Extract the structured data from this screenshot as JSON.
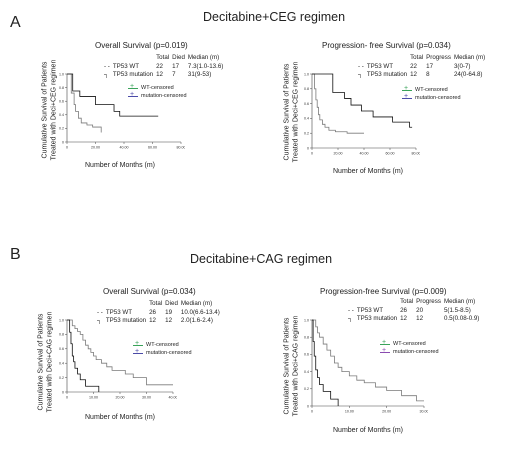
{
  "panels": [
    {
      "letter": "A",
      "regimen": "Decitabine+CEG regimen",
      "ylabel_line1": "Cumulative Survival of Patients",
      "ylabel_line2": "Treated with Deci+CEG regimen",
      "xlabel": "Number of Months (m)",
      "legend": [
        "WT-censored",
        "mutation-censored"
      ]
    },
    {
      "letter": "B",
      "regimen": "Decitabine+CAG regimen",
      "ylabel_line1": "Cumulative Survival of Patients",
      "ylabel_line2": "Treated with Deci+CAG regimen",
      "xlabel": "Number of Months (m)",
      "legend": [
        "WT-censored",
        "mutation-censored"
      ]
    }
  ],
  "colors": {
    "wt": "#7a7a7a",
    "mut": "#111111",
    "wt_censor": "#3aa35a",
    "mut_censor": "#4b4ba8"
  },
  "chart_data": [
    {
      "type": "line",
      "title": "Overall Survival (p=0.019)",
      "xlabel": "Number of Months (m)",
      "ylabel": "Cumulative Survival of Patients Treated with Deci+CEG regimen",
      "ylim": [
        0,
        1
      ],
      "xlim": [
        0,
        80
      ],
      "x_ticks": [
        "0",
        "20.00",
        "40.00",
        "60.00",
        "80.00"
      ],
      "y_ticks": [
        "0",
        "0.2",
        "0.4",
        "0.6",
        "0.8",
        "1.0"
      ],
      "table": {
        "headers": [
          "",
          "Total",
          "Died",
          "Median (m)"
        ],
        "rows": [
          [
            "TP53 WT",
            "22",
            "17",
            "7.3(1.0-13.6)"
          ],
          [
            "TP53 mutation",
            "12",
            "7",
            "31(9-53)"
          ]
        ]
      },
      "series": [
        {
          "name": "TP53 WT",
          "style": "dashed",
          "x": [
            0,
            3,
            5,
            6,
            8,
            10,
            14,
            18,
            24
          ],
          "y": [
            1.0,
            0.72,
            0.55,
            0.45,
            0.35,
            0.28,
            0.25,
            0.22,
            0.14
          ]
        },
        {
          "name": "TP53 mutation",
          "style": "solid",
          "x": [
            0,
            4,
            9,
            20,
            33,
            37,
            40,
            64
          ],
          "y": [
            1.0,
            0.75,
            0.67,
            0.55,
            0.45,
            0.38,
            0.38,
            0.38
          ]
        }
      ]
    },
    {
      "type": "line",
      "title": "Progression- free Survival (p=0.034)",
      "xlabel": "Number of Months (m)",
      "ylabel": "Cumulative Survival of Patients Treated with Deci+CEG regimen",
      "ylim": [
        0,
        1
      ],
      "xlim": [
        0,
        80
      ],
      "x_ticks": [
        "0",
        "20.00",
        "40.00",
        "60.00",
        "80.00"
      ],
      "y_ticks": [
        "0",
        "0.2",
        "0.4",
        "0.6",
        "0.8",
        "1.0"
      ],
      "table": {
        "headers": [
          "",
          "Total",
          "Progress",
          "Median (m)"
        ],
        "rows": [
          [
            "TP53 WT",
            "22",
            "17",
            "3(0-7)"
          ],
          [
            "TP53 mutation",
            "12",
            "8",
            "24(0-64.8)"
          ]
        ]
      },
      "series": [
        {
          "name": "TP53 WT",
          "style": "dashed",
          "x": [
            0,
            2,
            3,
            4,
            5,
            6,
            8,
            10,
            13,
            18,
            27,
            40
          ],
          "y": [
            1.0,
            0.8,
            0.65,
            0.55,
            0.45,
            0.38,
            0.32,
            0.28,
            0.24,
            0.22,
            0.2,
            0.2
          ]
        },
        {
          "name": "TP53 mutation",
          "style": "solid",
          "x": [
            0,
            16,
            25,
            30,
            38,
            47,
            62,
            75,
            77
          ],
          "y": [
            1.0,
            0.75,
            0.67,
            0.58,
            0.5,
            0.42,
            0.35,
            0.28,
            0.28
          ]
        }
      ]
    },
    {
      "type": "line",
      "title": "Overall Survival (p=0.034)",
      "xlabel": "Number of Months (m)",
      "ylabel": "Cumulative Survival of Patients Treated with Deci+CAG regimen",
      "ylim": [
        0,
        1
      ],
      "xlim": [
        0,
        40
      ],
      "x_ticks": [
        "0",
        "10.00",
        "20.00",
        "30.00",
        "40.00"
      ],
      "y_ticks": [
        "0",
        "0.2",
        "0.4",
        "0.6",
        "0.8",
        "1.0"
      ],
      "table": {
        "headers": [
          "",
          "Total",
          "Died",
          "Median (m)"
        ],
        "rows": [
          [
            "TP53 WT",
            "26",
            "19",
            "10.0(6.6-13.4)"
          ],
          [
            "TP53 mutation",
            "12",
            "12",
            "2.0(1.6-2.4)"
          ]
        ]
      },
      "series": [
        {
          "name": "TP53 WT",
          "style": "solid",
          "x": [
            0,
            2,
            3,
            4,
            5,
            6,
            7,
            8,
            9,
            10,
            11,
            13,
            15,
            17,
            22,
            25,
            30,
            40
          ],
          "y": [
            1.0,
            0.92,
            0.88,
            0.84,
            0.8,
            0.72,
            0.65,
            0.6,
            0.55,
            0.5,
            0.45,
            0.4,
            0.35,
            0.3,
            0.25,
            0.2,
            0.1,
            0.1
          ]
        },
        {
          "name": "TP53 mutation",
          "style": "solid",
          "x": [
            0,
            1,
            1.5,
            2,
            2.5,
            3,
            4,
            5,
            7,
            8,
            10,
            12
          ],
          "y": [
            1.0,
            0.83,
            0.67,
            0.5,
            0.42,
            0.33,
            0.25,
            0.17,
            0.08,
            0.08,
            0.08,
            0.0
          ]
        }
      ]
    },
    {
      "type": "line",
      "title": "Progression-free Survival (p=0.009)",
      "xlabel": "Number of Months (m)",
      "ylabel": "Cumulative Survival of Patients Treated with Deci+CAG regimen",
      "ylim": [
        0,
        1
      ],
      "xlim": [
        0,
        30
      ],
      "x_ticks": [
        "0",
        "10.00",
        "20.00",
        "30.00"
      ],
      "y_ticks": [
        "0",
        "0.2",
        "0.4",
        "0.6",
        "0.8",
        "1.0"
      ],
      "table": {
        "headers": [
          "",
          "Total",
          "Progress",
          "Median (m)"
        ],
        "rows": [
          [
            "TP53 WT",
            "26",
            "20",
            "5(1.5-8.5)"
          ],
          [
            "TP53 mutation",
            "12",
            "12",
            "0.5(0.08-0.9)"
          ]
        ]
      },
      "series": [
        {
          "name": "TP53 WT",
          "style": "solid",
          "x": [
            0,
            1,
            1.5,
            2,
            3,
            4,
            5,
            6,
            7,
            8,
            10,
            12,
            14,
            17,
            20,
            24,
            28,
            30
          ],
          "y": [
            1.0,
            0.92,
            0.85,
            0.8,
            0.72,
            0.65,
            0.58,
            0.5,
            0.45,
            0.4,
            0.35,
            0.3,
            0.27,
            0.22,
            0.18,
            0.12,
            0.06,
            0.06
          ]
        },
        {
          "name": "TP53 mutation",
          "style": "solid",
          "x": [
            0,
            0.3,
            0.6,
            1,
            1.5,
            2,
            3,
            4,
            5,
            6,
            7
          ],
          "y": [
            1.0,
            0.75,
            0.58,
            0.42,
            0.33,
            0.25,
            0.17,
            0.17,
            0.08,
            0.08,
            0.0
          ]
        }
      ]
    }
  ]
}
